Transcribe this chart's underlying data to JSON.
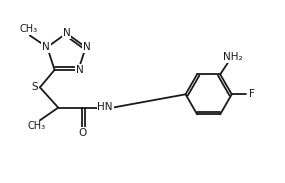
{
  "bg_color": "#ffffff",
  "line_color": "#1a1a1a",
  "line_width": 1.3,
  "font_size": 7.5,
  "xlim": [
    0,
    10
  ],
  "ylim": [
    0,
    6.5
  ]
}
